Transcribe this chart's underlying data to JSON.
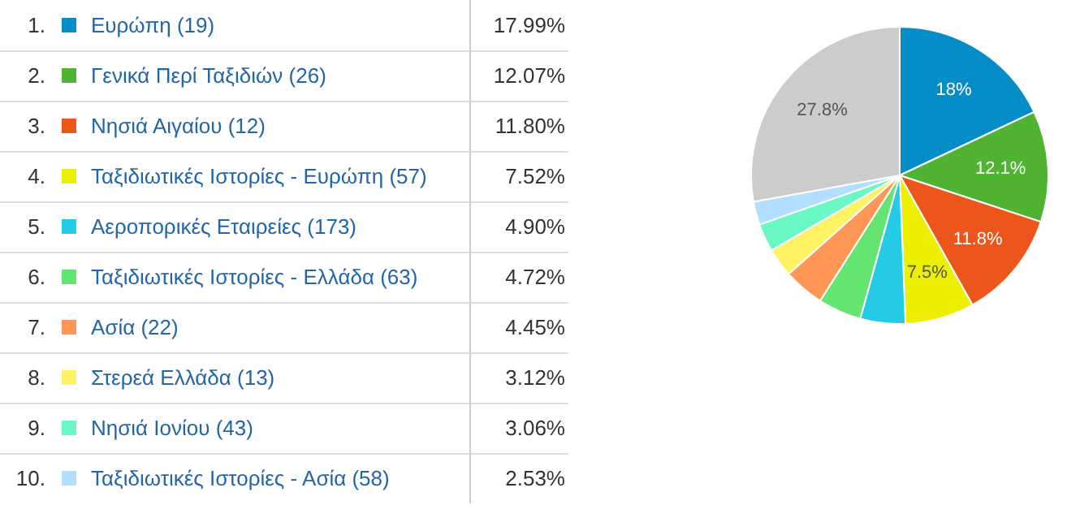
{
  "chart_data": {
    "type": "pie",
    "categories": [
      "Ευρώπη (19)",
      "Γενικά Περί Ταξιδιών (26)",
      "Νησιά Αιγαίου (12)",
      "Ταξιδιωτικές Ιστορίες - Ευρώπη (57)",
      "Αεροπορικές Εταιρείες (173)",
      "Ταξιδιωτικές Ιστορίες - Ελλάδα (63)",
      "Ασία (22)",
      "Στερεά Ελλάδα (13)",
      "Νησιά Ιονίου (43)",
      "Ταξιδιωτικές Ιστορίες - Ασία (58)",
      null
    ],
    "values": [
      17.99,
      12.07,
      11.8,
      7.52,
      4.9,
      4.72,
      4.45,
      3.12,
      3.06,
      2.53,
      27.84
    ],
    "colors": [
      "#058dc7",
      "#50b432",
      "#ed561b",
      "#edef00",
      "#24cbe5",
      "#64e572",
      "#ff9655",
      "#fff263",
      "#6af9c4",
      "#b2deff",
      "#cccccc"
    ],
    "value_labels": [
      "18%",
      "12.1%",
      "11.8%",
      "7.5%",
      null,
      null,
      null,
      null,
      null,
      null,
      "27.8%"
    ],
    "legend": "left",
    "annotations": [
      "1.",
      "17.99%",
      "2.",
      "12.07%",
      "3.",
      "11.80%",
      "4.",
      "7.52%",
      "5.",
      "4.90%",
      "6.",
      "4.72%",
      "7.",
      "4.45%",
      "8.",
      "3.12%",
      "9.",
      "3.06%",
      "10.",
      "2.53%"
    ]
  }
}
